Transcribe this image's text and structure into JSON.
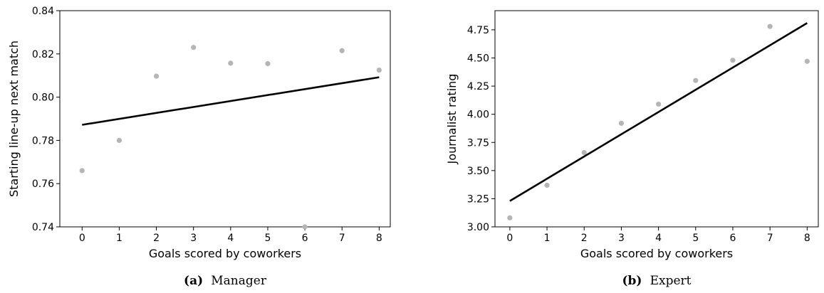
{
  "chart_data": [
    {
      "type": "scatter",
      "title": "",
      "xlabel": "Goals scored by coworkers",
      "ylabel": "Starting line-up next match",
      "caption_tag": "(a)",
      "caption_text": "Manager",
      "xlim": [
        -0.6,
        8.3
      ],
      "ylim": [
        0.74,
        0.84
      ],
      "xticks": [
        0,
        1,
        2,
        3,
        4,
        5,
        6,
        7,
        8
      ],
      "yticks": [
        0.74,
        0.76,
        0.78,
        0.8,
        0.82,
        0.84
      ],
      "ytick_labels": [
        "0.74",
        "0.76",
        "0.78",
        "0.80",
        "0.82",
        "0.84"
      ],
      "points": {
        "x": [
          0,
          1,
          2,
          3,
          4,
          5,
          6,
          7,
          8
        ],
        "y": [
          0.766,
          0.78,
          0.8097,
          0.823,
          0.8157,
          0.8155,
          0.74,
          0.8215,
          0.8125
        ],
        "color": "#b5b5b5"
      },
      "fit_line": {
        "x": [
          0,
          8
        ],
        "y": [
          0.7872,
          0.8092
        ],
        "color": "#000000"
      },
      "grid": false,
      "legend": "none"
    },
    {
      "type": "scatter",
      "title": "",
      "xlabel": "Goals scored by coworkers",
      "ylabel": "Journalist rating",
      "caption_tag": "(b)",
      "caption_text": "Expert",
      "xlim": [
        -0.4,
        8.3
      ],
      "ylim": [
        3.0,
        4.92
      ],
      "xticks": [
        0,
        1,
        2,
        3,
        4,
        5,
        6,
        7,
        8
      ],
      "yticks": [
        3.0,
        3.25,
        3.5,
        3.75,
        4.0,
        4.25,
        4.5,
        4.75
      ],
      "ytick_labels": [
        "3.00",
        "3.25",
        "3.50",
        "3.75",
        "4.00",
        "4.25",
        "4.50",
        "4.75"
      ],
      "points": {
        "x": [
          0,
          1,
          2,
          3,
          4,
          5,
          6,
          7,
          8
        ],
        "y": [
          3.08,
          3.37,
          3.66,
          3.92,
          4.09,
          4.3,
          4.48,
          4.78,
          4.47
        ],
        "color": "#b5b5b5"
      },
      "fit_line": {
        "x": [
          0,
          8
        ],
        "y": [
          3.23,
          4.81
        ],
        "color": "#000000"
      },
      "grid": false,
      "legend": "none"
    }
  ]
}
